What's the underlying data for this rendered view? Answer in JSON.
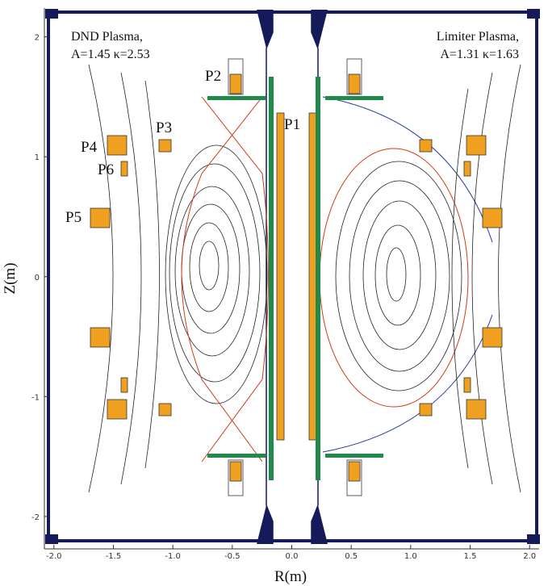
{
  "chart_data": {
    "type": "contour",
    "xlabel": "R(m)",
    "ylabel": "Z(m)",
    "xlim": [
      -2.08,
      2.08
    ],
    "ylim": [
      -2.27,
      2.24
    ],
    "xticks": [
      {
        "value": -2,
        "label": "-2.0"
      },
      {
        "value": -1.5,
        "label": "-1.5"
      },
      {
        "value": -1,
        "label": "-1.0"
      },
      {
        "value": -0.5,
        "label": "-0.5"
      },
      {
        "value": 0,
        "label": "0.0"
      },
      {
        "value": 0.5,
        "label": "0.5"
      },
      {
        "value": 1,
        "label": "1.0"
      },
      {
        "value": 1.5,
        "label": "1.5"
      },
      {
        "value": 2,
        "label": "2.0"
      }
    ],
    "yticks": [
      -2,
      -1,
      0,
      1,
      2
    ],
    "annotations": {
      "left_title": "DND Plasma,",
      "left_params": "A=1.45  κ=2.53",
      "right_title": "Limiter Plasma,",
      "right_params": "A=1.31  κ=1.63",
      "p1": "P1",
      "p2": "P2",
      "p3": "P3",
      "p4": "P4",
      "p5": "P5",
      "p6": "P6"
    }
  }
}
